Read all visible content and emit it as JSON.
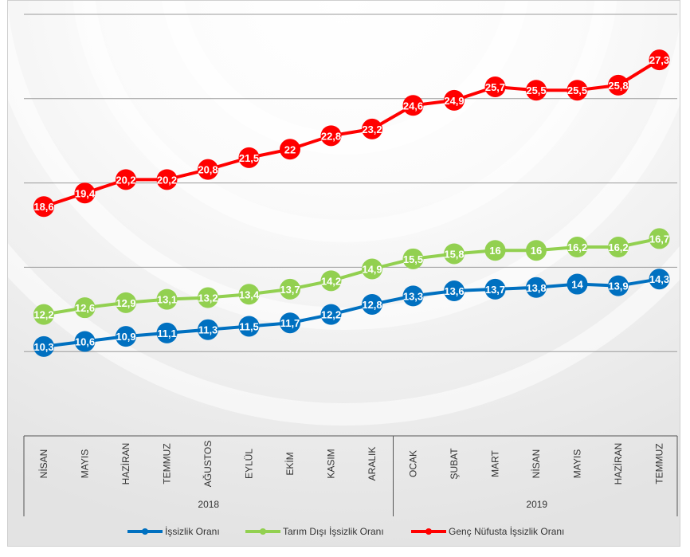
{
  "chart_data": {
    "type": "line",
    "categories": [
      "NİSAN",
      "MAYIS",
      "HAZİRAN",
      "TEMMUZ",
      "AĞUSTOS",
      "EYLÜL",
      "EKİM",
      "KASIM",
      "ARALIK",
      "OCAK",
      "ŞUBAT",
      "MART",
      "NİSAN",
      "MAYIS",
      "HAZİRAN",
      "TEMMUZ"
    ],
    "groups": [
      {
        "label": "2018",
        "count": 9
      },
      {
        "label": "2019",
        "count": 7
      }
    ],
    "series": [
      {
        "name": "İşsizlik Oranı",
        "color": "#0070c0",
        "values": [
          10.3,
          10.6,
          10.9,
          11.1,
          11.3,
          11.5,
          11.7,
          12.2,
          12.8,
          13.3,
          13.6,
          13.7,
          13.8,
          14,
          13.9,
          14.3
        ],
        "labels": [
          "10,3",
          "10,6",
          "10,9",
          "11,1",
          "11,3",
          "11,5",
          "11,7",
          "12,2",
          "12,8",
          "13,3",
          "13,6",
          "13,7",
          "13,8",
          "14",
          "13,9",
          "14,3"
        ]
      },
      {
        "name": "Tarım Dışı İşsizlik Oranı",
        "color": "#92d050",
        "values": [
          12.2,
          12.6,
          12.9,
          13.1,
          13.2,
          13.4,
          13.7,
          14.2,
          14.9,
          15.5,
          15.8,
          16,
          16,
          16.2,
          16.2,
          16.7
        ],
        "labels": [
          "12,2",
          "12,6",
          "12,9",
          "13,1",
          "13,2",
          "13,4",
          "13,7",
          "14,2",
          "14,9",
          "15,5",
          "15,8",
          "16",
          "16",
          "16,2",
          "16,2",
          "16,7"
        ]
      },
      {
        "name": "Genç Nüfusta İşsizlik Oranı",
        "color": "#ff0000",
        "values": [
          18.6,
          19.4,
          20.2,
          20.2,
          20.8,
          21.5,
          22,
          22.8,
          23.2,
          24.6,
          24.9,
          25.7,
          25.5,
          25.5,
          25.8,
          27.3
        ],
        "labels": [
          "18,6",
          "19,4",
          "20,2",
          "20,2",
          "20,8",
          "21,5",
          "22",
          "22,8",
          "23,2",
          "24,6",
          "24,9",
          "25,7",
          "25,5",
          "25,5",
          "25,8",
          "27,3"
        ]
      }
    ],
    "ylim": [
      5,
      30
    ],
    "grid": true,
    "legend_position": "bottom"
  }
}
